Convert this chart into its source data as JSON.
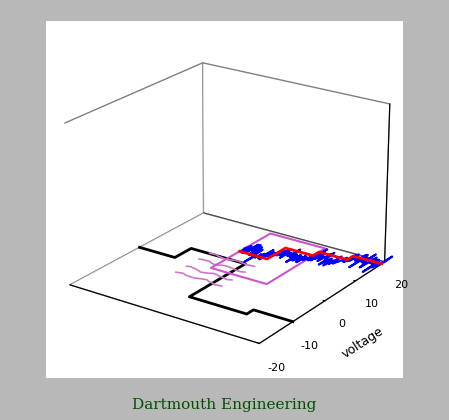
{
  "title": "Dartmouth Engineering",
  "title_color": "#005000",
  "ylabel": "voltage",
  "bg_color": "#b8b8b8",
  "ylim": [
    -20,
    20
  ],
  "yticks": [
    -20,
    -10,
    0,
    10,
    20
  ],
  "elev": 22,
  "azim": -55,
  "xlim": [
    0,
    10
  ],
  "zlim": [
    0,
    10
  ],
  "colors": {
    "black": "black",
    "blue": "blue",
    "red": "red",
    "magenta": "#cc55cc",
    "pink": "#cc77cc"
  },
  "noise_seed": 3,
  "lw_black": 2.0,
  "lw_blue": 1.5,
  "lw_red": 2.0,
  "lw_magenta": 1.5
}
